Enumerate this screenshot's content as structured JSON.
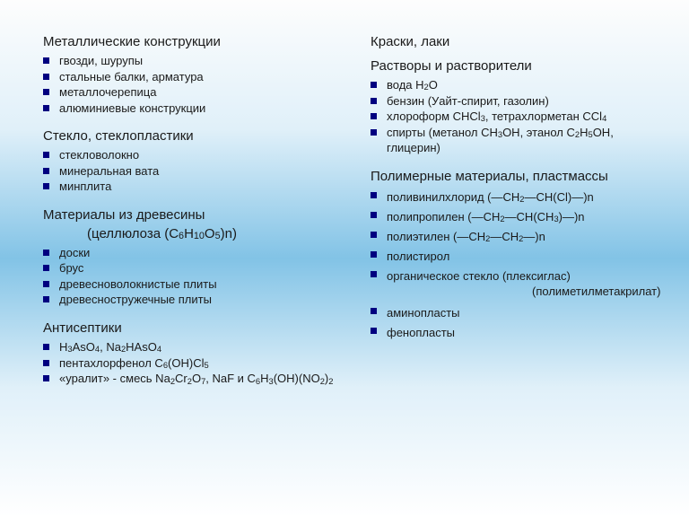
{
  "colors": {
    "bullet": "#000080",
    "text": "#1a1a1a",
    "bg_top": "#fdfdfd",
    "bg_mid": "#82c3e6",
    "bg_bot": "#ffffff"
  },
  "left": {
    "sec1": {
      "title": "Металлические конструкции",
      "items": [
        "гвозди, шурупы",
        "стальные балки, арматура",
        "металлочерепица",
        "алюминиевые конструкции"
      ]
    },
    "sec2": {
      "title": "Стекло, стеклопластики",
      "items": [
        "стекловолокно",
        "минеральная вата",
        "минплита"
      ]
    },
    "sec3": {
      "title": "Материалы из древесины",
      "sub_prefix": "(целлюлоза (C",
      "sub_formula_parts": [
        "6",
        "H",
        "10",
        "O",
        "5"
      ],
      "sub_suffix": ")n)",
      "items": [
        "доски",
        "брус",
        "древесноволокнистые плиты",
        "древесностружечные плиты"
      ]
    },
    "sec4": {
      "title": "Антисептики",
      "items": [
        {
          "html": "H<sub>3</sub>AsO<sub>4</sub>, Na<sub>2</sub>HAsO<sub>4</sub>"
        },
        {
          "html": "пентахлорфенол  C<sub>6</sub>(OH)Cl<sub>5</sub>"
        },
        {
          "html": "«уралит» - смесь Na<sub>2</sub>Cr<sub>2</sub>O<sub>7</sub>, NaF и C<sub>6</sub>H<sub>3</sub>(OH)(NO<sub>2</sub>)<sub>2</sub>"
        }
      ]
    }
  },
  "right": {
    "sec1": {
      "title": "Краски, лаки"
    },
    "sec2": {
      "title": "Растворы и растворители",
      "items": [
        {
          "html": "вода  H<sub>2</sub>O"
        },
        {
          "html": "бензин (Уайт-спирит, газолин)"
        },
        {
          "html": "хлороформ CHCl<sub>3</sub>, тетрахлорметан CCl<sub>4</sub>"
        },
        {
          "html": "спирты (метанол CH<sub>3</sub>OH, этанол C<sub>2</sub>H<sub>5</sub>OH, глицерин)"
        }
      ]
    },
    "sec3": {
      "title": "Полимерные материалы, пластмассы",
      "items": [
        {
          "html": "поливинилхлорид  (―CH<sub>2</sub>―CH(Cl)―)n"
        },
        {
          "html": "полипропилен  (―CH<sub>2</sub>―CH(CH<sub>3</sub>)―)n"
        },
        {
          "html": "полиэтилен  (―CH<sub>2</sub>―CH<sub>2</sub>―)n"
        },
        {
          "html": "полистирол"
        },
        {
          "html": "органическое стекло (плексиглас)"
        }
      ],
      "indent": "(полиметилметакрилат)",
      "items2": [
        {
          "html": "аминопласты"
        },
        {
          "html": "фенопласты"
        }
      ]
    }
  }
}
